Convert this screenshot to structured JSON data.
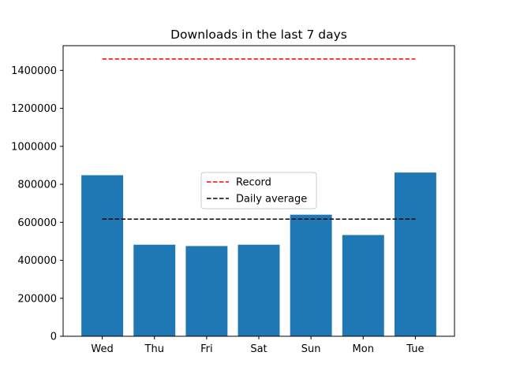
{
  "chart_data": {
    "type": "bar",
    "title": "Downloads in the last 7 days",
    "xlabel": "",
    "ylabel": "",
    "categories": [
      "Wed",
      "Thu",
      "Fri",
      "Sat",
      "Sun",
      "Mon",
      "Tue"
    ],
    "series": [
      {
        "values": [
          848000,
          482000,
          475000,
          482000,
          640000,
          533000,
          862000
        ],
        "color": "#1f77b4"
      }
    ],
    "reference_lines": [
      {
        "name": "Record",
        "value": 1460000,
        "color": "#ff0000",
        "style": "dashed"
      },
      {
        "name": "Daily average",
        "value": 617000,
        "color": "#000000",
        "style": "dashed"
      }
    ],
    "ylim": [
      0,
      1530000
    ],
    "yticks": [
      0,
      200000,
      400000,
      600000,
      800000,
      1000000,
      1200000,
      1400000
    ],
    "ytick_labels": [
      "0",
      "200000",
      "400000",
      "600000",
      "800000",
      "1000000",
      "1200000",
      "1400000"
    ],
    "grid": false,
    "legend": {
      "placement": "center"
    }
  }
}
